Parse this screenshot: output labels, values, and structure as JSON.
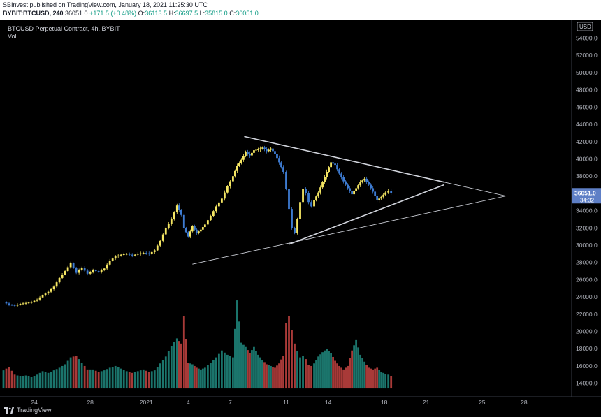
{
  "header": {
    "published_line": "SBInvest published on TradingView.com, January 18, 2021 11:25:30 UTC",
    "symbol": "BYBIT:BTCUSD, 240",
    "last": "36051.0",
    "change": "+171.5 (+0.48%)",
    "o_label": "O:",
    "o_value": "36113.5",
    "h_label": "H:",
    "h_value": "36697.5",
    "l_label": "L:",
    "l_value": "35815.0",
    "c_label": "C:",
    "c_value": "36051.0"
  },
  "legend": {
    "title": "BTCUSD Perpetual Contract, 4h, BYBIT",
    "vol_label": "Vol"
  },
  "footer": {
    "brand": "TradingView"
  },
  "colors": {
    "up": "#f5e663",
    "down": "#3d7bd1",
    "vol_up": "#26a69a",
    "vol_down": "#ef5350",
    "trendline": "#d1d4dc",
    "last_price_bg": "#5e7fc6"
  },
  "chart_data": {
    "type": "candlestick",
    "currency_label": "USD",
    "y_ticks": [
      "54000.0",
      "52000.0",
      "50000.0",
      "48000.0",
      "46000.0",
      "44000.0",
      "42000.0",
      "40000.0",
      "38000.0",
      "34000.0",
      "32000.0",
      "30000.0",
      "28000.0",
      "26000.0",
      "24000.0",
      "22000.0",
      "20000.0",
      "18000.0",
      "16000.0",
      "14000.0"
    ],
    "ylim": [
      13000,
      55500
    ],
    "x_ticks": [
      {
        "label": "24",
        "day": 24
      },
      {
        "label": "28",
        "day": 28
      },
      {
        "label": "2021",
        "day": 32
      },
      {
        "label": "4",
        "day": 35
      },
      {
        "label": "7",
        "day": 38
      },
      {
        "label": "11",
        "day": 42
      },
      {
        "label": "14",
        "day": 45
      },
      {
        "label": "18",
        "day": 49
      },
      {
        "label": "21",
        "day": 52
      },
      {
        "label": "25",
        "day": 56
      },
      {
        "label": "28",
        "day": 59
      }
    ],
    "last_price": {
      "value": 36051.0,
      "label": "36051.0",
      "countdown": "34:32"
    },
    "price_path": [
      [
        21.8,
        23400
      ],
      [
        22.2,
        23100
      ],
      [
        22.6,
        23000
      ],
      [
        23.0,
        23200
      ],
      [
        23.4,
        23300
      ],
      [
        23.8,
        23400
      ],
      [
        24.2,
        23700
      ],
      [
        24.6,
        24200
      ],
      [
        25.0,
        24600
      ],
      [
        25.4,
        25200
      ],
      [
        25.8,
        26200
      ],
      [
        26.2,
        27000
      ],
      [
        26.6,
        27900
      ],
      [
        27.0,
        26800
      ],
      [
        27.4,
        27400
      ],
      [
        27.8,
        26700
      ],
      [
        28.2,
        27100
      ],
      [
        28.6,
        26900
      ],
      [
        29.0,
        27300
      ],
      [
        29.4,
        28200
      ],
      [
        29.8,
        28700
      ],
      [
        30.2,
        28900
      ],
      [
        30.6,
        29000
      ],
      [
        31.0,
        28800
      ],
      [
        31.4,
        29000
      ],
      [
        31.8,
        29100
      ],
      [
        32.2,
        29000
      ],
      [
        32.6,
        29400
      ],
      [
        33.0,
        30500
      ],
      [
        33.4,
        32000
      ],
      [
        33.8,
        33000
      ],
      [
        34.2,
        34600
      ],
      [
        34.5,
        33500
      ],
      [
        34.7,
        32000
      ],
      [
        35.0,
        31000
      ],
      [
        35.3,
        32200
      ],
      [
        35.6,
        31400
      ],
      [
        35.9,
        31800
      ],
      [
        36.2,
        32400
      ],
      [
        36.6,
        33400
      ],
      [
        37.0,
        34500
      ],
      [
        37.4,
        35400
      ],
      [
        37.8,
        36800
      ],
      [
        38.2,
        38000
      ],
      [
        38.5,
        39200
      ],
      [
        38.8,
        39900
      ],
      [
        39.1,
        40800
      ],
      [
        39.4,
        40400
      ],
      [
        39.7,
        41000
      ],
      [
        40.0,
        41100
      ],
      [
        40.3,
        41300
      ],
      [
        40.6,
        40900
      ],
      [
        40.9,
        41200
      ],
      [
        41.2,
        40600
      ],
      [
        41.5,
        39600
      ],
      [
        41.8,
        38500
      ],
      [
        42.0,
        36500
      ],
      [
        42.2,
        34200
      ],
      [
        42.4,
        32000
      ],
      [
        42.6,
        31400
      ],
      [
        42.8,
        33000
      ],
      [
        43.0,
        35000
      ],
      [
        43.2,
        36500
      ],
      [
        43.4,
        36000
      ],
      [
        43.6,
        35000
      ],
      [
        43.8,
        34500
      ],
      [
        44.0,
        35200
      ],
      [
        44.3,
        36100
      ],
      [
        44.6,
        37300
      ],
      [
        44.9,
        38500
      ],
      [
        45.2,
        39600
      ],
      [
        45.5,
        39300
      ],
      [
        45.8,
        38300
      ],
      [
        46.1,
        37400
      ],
      [
        46.4,
        36600
      ],
      [
        46.7,
        35900
      ],
      [
        47.0,
        36600
      ],
      [
        47.3,
        37300
      ],
      [
        47.6,
        37700
      ],
      [
        47.9,
        37000
      ],
      [
        48.2,
        36200
      ],
      [
        48.5,
        35200
      ],
      [
        48.8,
        35600
      ],
      [
        49.1,
        36100
      ],
      [
        49.3,
        36300
      ],
      [
        49.5,
        36051
      ]
    ],
    "volume_path": [
      [
        21.8,
        15500
      ],
      [
        22.2,
        15900
      ],
      [
        22.6,
        15000
      ],
      [
        23.0,
        14800
      ],
      [
        23.4,
        14900
      ],
      [
        23.8,
        14700
      ],
      [
        24.2,
        15000
      ],
      [
        24.6,
        15400
      ],
      [
        25.0,
        15200
      ],
      [
        25.4,
        15500
      ],
      [
        25.8,
        15800
      ],
      [
        26.2,
        16200
      ],
      [
        26.6,
        17000
      ],
      [
        27.0,
        17200
      ],
      [
        27.4,
        16400
      ],
      [
        27.8,
        15600
      ],
      [
        28.2,
        15600
      ],
      [
        28.6,
        15300
      ],
      [
        29.0,
        15500
      ],
      [
        29.4,
        15800
      ],
      [
        29.8,
        16000
      ],
      [
        30.2,
        15700
      ],
      [
        30.6,
        15400
      ],
      [
        31.0,
        15200
      ],
      [
        31.4,
        15400
      ],
      [
        31.8,
        15600
      ],
      [
        32.2,
        15300
      ],
      [
        32.6,
        15500
      ],
      [
        33.0,
        16300
      ],
      [
        33.4,
        17100
      ],
      [
        33.8,
        18300
      ],
      [
        34.2,
        19200
      ],
      [
        34.5,
        18600
      ],
      [
        34.7,
        21800
      ],
      [
        35.0,
        16400
      ],
      [
        35.3,
        16200
      ],
      [
        35.6,
        15800
      ],
      [
        35.9,
        15600
      ],
      [
        36.2,
        15800
      ],
      [
        36.6,
        16400
      ],
      [
        37.0,
        17000
      ],
      [
        37.4,
        17800
      ],
      [
        37.8,
        17300
      ],
      [
        38.2,
        17000
      ],
      [
        38.5,
        23600
      ],
      [
        38.8,
        18700
      ],
      [
        39.1,
        18200
      ],
      [
        39.4,
        17500
      ],
      [
        39.7,
        18200
      ],
      [
        40.0,
        17300
      ],
      [
        40.3,
        16700
      ],
      [
        40.6,
        16200
      ],
      [
        40.9,
        16000
      ],
      [
        41.2,
        15800
      ],
      [
        41.5,
        16300
      ],
      [
        41.8,
        17200
      ],
      [
        42.0,
        21000
      ],
      [
        42.2,
        21800
      ],
      [
        42.4,
        20200
      ],
      [
        42.6,
        18600
      ],
      [
        42.8,
        17700
      ],
      [
        43.0,
        17000
      ],
      [
        43.2,
        17200
      ],
      [
        43.4,
        16800
      ],
      [
        43.6,
        16100
      ],
      [
        43.8,
        16000
      ],
      [
        44.0,
        16300
      ],
      [
        44.3,
        17100
      ],
      [
        44.6,
        17600
      ],
      [
        44.9,
        18000
      ],
      [
        45.2,
        17500
      ],
      [
        45.5,
        16600
      ],
      [
        45.8,
        16000
      ],
      [
        46.1,
        15600
      ],
      [
        46.4,
        16000
      ],
      [
        46.7,
        17800
      ],
      [
        47.0,
        19000
      ],
      [
        47.3,
        17300
      ],
      [
        47.6,
        16500
      ],
      [
        47.9,
        15800
      ],
      [
        48.2,
        15600
      ],
      [
        48.5,
        15800
      ],
      [
        48.8,
        15300
      ],
      [
        49.1,
        15100
      ],
      [
        49.3,
        15000
      ],
      [
        49.5,
        14800
      ]
    ],
    "trendlines": [
      {
        "from": [
          39.0,
          42600
        ],
        "to": [
          53.3,
          37300
        ],
        "style": "thick"
      },
      {
        "from": [
          53.3,
          37300
        ],
        "to": [
          57.7,
          35700
        ],
        "style": "thin"
      },
      {
        "from": [
          42.2,
          30100
        ],
        "to": [
          53.3,
          37000
        ],
        "style": "thick"
      },
      {
        "from": [
          35.3,
          27800
        ],
        "to": [
          57.7,
          35700
        ],
        "style": "thin"
      }
    ],
    "grid": false,
    "legend_position": "top-left"
  }
}
